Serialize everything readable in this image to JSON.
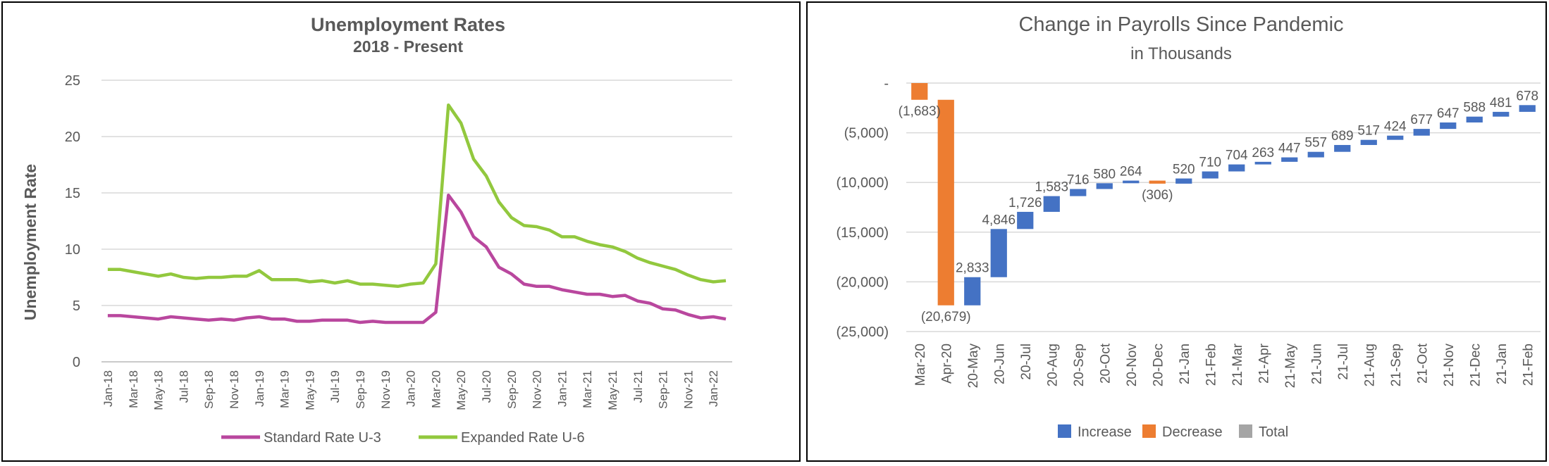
{
  "chart_data": [
    {
      "type": "line",
      "title": "Unemployment Rates",
      "subtitle": "2018 - Present",
      "ylabel": "Unemployment Rate",
      "ylim": [
        0,
        25
      ],
      "yticks": [
        "0",
        "5",
        "10",
        "15",
        "20",
        "25"
      ],
      "grid": true,
      "legend_position": "bottom",
      "x_tick_labels": [
        "Jan-18",
        "Mar-18",
        "May-18",
        "Jul-18",
        "Sep-18",
        "Nov-18",
        "Jan-19",
        "Mar-19",
        "May-19",
        "Jul-19",
        "Sep-19",
        "Nov-19",
        "Jan-20",
        "Mar-20",
        "May-20",
        "Jul-20",
        "Sep-20",
        "Nov-20",
        "Jan-21",
        "Mar-21",
        "May-21",
        "Jul-21",
        "Sep-21",
        "Nov-21",
        "Jan-22"
      ],
      "x": [
        "Jan-18",
        "Feb-18",
        "Mar-18",
        "Apr-18",
        "May-18",
        "Jun-18",
        "Jul-18",
        "Aug-18",
        "Sep-18",
        "Oct-18",
        "Nov-18",
        "Dec-18",
        "Jan-19",
        "Feb-19",
        "Mar-19",
        "Apr-19",
        "May-19",
        "Jun-19",
        "Jul-19",
        "Aug-19",
        "Sep-19",
        "Oct-19",
        "Nov-19",
        "Dec-19",
        "Jan-20",
        "Feb-20",
        "Mar-20",
        "Apr-20",
        "May-20",
        "Jun-20",
        "Jul-20",
        "Aug-20",
        "Sep-20",
        "Oct-20",
        "Nov-20",
        "Dec-20",
        "Jan-21",
        "Feb-21",
        "Mar-21",
        "Apr-21",
        "May-21",
        "Jun-21",
        "Jul-21",
        "Aug-21",
        "Sep-21",
        "Oct-21",
        "Nov-21",
        "Dec-21",
        "Jan-22",
        "Feb-22"
      ],
      "series": [
        {
          "name": "Standard Rate U-3",
          "color": "#b9479e",
          "values": [
            4.1,
            4.1,
            4.0,
            3.9,
            3.8,
            4.0,
            3.9,
            3.8,
            3.7,
            3.8,
            3.7,
            3.9,
            4.0,
            3.8,
            3.8,
            3.6,
            3.6,
            3.7,
            3.7,
            3.7,
            3.5,
            3.6,
            3.5,
            3.5,
            3.5,
            3.5,
            4.4,
            14.8,
            13.3,
            11.1,
            10.2,
            8.4,
            7.8,
            6.9,
            6.7,
            6.7,
            6.4,
            6.2,
            6.0,
            6.0,
            5.8,
            5.9,
            5.4,
            5.2,
            4.7,
            4.6,
            4.2,
            3.9,
            4.0,
            3.8
          ]
        },
        {
          "name": "Expanded Rate U-6",
          "color": "#92c83e",
          "values": [
            8.2,
            8.2,
            8.0,
            7.8,
            7.6,
            7.8,
            7.5,
            7.4,
            7.5,
            7.5,
            7.6,
            7.6,
            8.1,
            7.3,
            7.3,
            7.3,
            7.1,
            7.2,
            7.0,
            7.2,
            6.9,
            6.9,
            6.8,
            6.7,
            6.9,
            7.0,
            8.7,
            22.8,
            21.2,
            18.0,
            16.5,
            14.2,
            12.8,
            12.1,
            12.0,
            11.7,
            11.1,
            11.1,
            10.7,
            10.4,
            10.2,
            9.8,
            9.2,
            8.8,
            8.5,
            8.2,
            7.7,
            7.3,
            7.1,
            7.2
          ]
        }
      ]
    },
    {
      "type": "waterfall",
      "title": "Change in Payrolls Since Pandemic",
      "subtitle": "in Thousands",
      "ylim": [
        -25000,
        0
      ],
      "yticks": [
        {
          "value": 0,
          "label": "-"
        },
        {
          "value": -5000,
          "label": "(5,000)"
        },
        {
          "value": -10000,
          "label": "(10,000)"
        },
        {
          "value": -15000,
          "label": "(15,000)"
        },
        {
          "value": -20000,
          "label": "(20,000)"
        },
        {
          "value": -25000,
          "label": "(25,000)"
        }
      ],
      "grid": true,
      "legend_position": "bottom",
      "legend": [
        {
          "name": "Increase",
          "color": "#4472c4"
        },
        {
          "name": "Decrease",
          "color": "#ed7d31"
        },
        {
          "name": "Total",
          "color": "#a5a5a5"
        }
      ],
      "categories": [
        "Mar-20",
        "Apr-20",
        "20-May",
        "20-Jun",
        "20-Jul",
        "20-Aug",
        "20-Sep",
        "20-Oct",
        "20-Nov",
        "20-Dec",
        "21-Jan",
        "21-Feb",
        "21-Mar",
        "21-Apr",
        "21-May",
        "21-Jun",
        "21-Jul",
        "21-Aug",
        "21-Sep",
        "21-Oct",
        "21-Nov",
        "21-Dec",
        "21-Jan",
        "21-Feb"
      ],
      "values": [
        -1683,
        -20679,
        2833,
        4846,
        1726,
        1583,
        716,
        580,
        264,
        -306,
        520,
        710,
        704,
        263,
        447,
        557,
        689,
        517,
        424,
        677,
        647,
        588,
        481,
        678
      ],
      "labels": [
        "(1,683)",
        "(20,679)",
        "2,833",
        "4,846",
        "1,726",
        "1,583",
        "716",
        "580",
        "264",
        "(306)",
        "520",
        "710",
        "704",
        "263",
        "447",
        "557",
        "689",
        "517",
        "424",
        "677",
        "647",
        "588",
        "481",
        "678"
      ]
    }
  ]
}
